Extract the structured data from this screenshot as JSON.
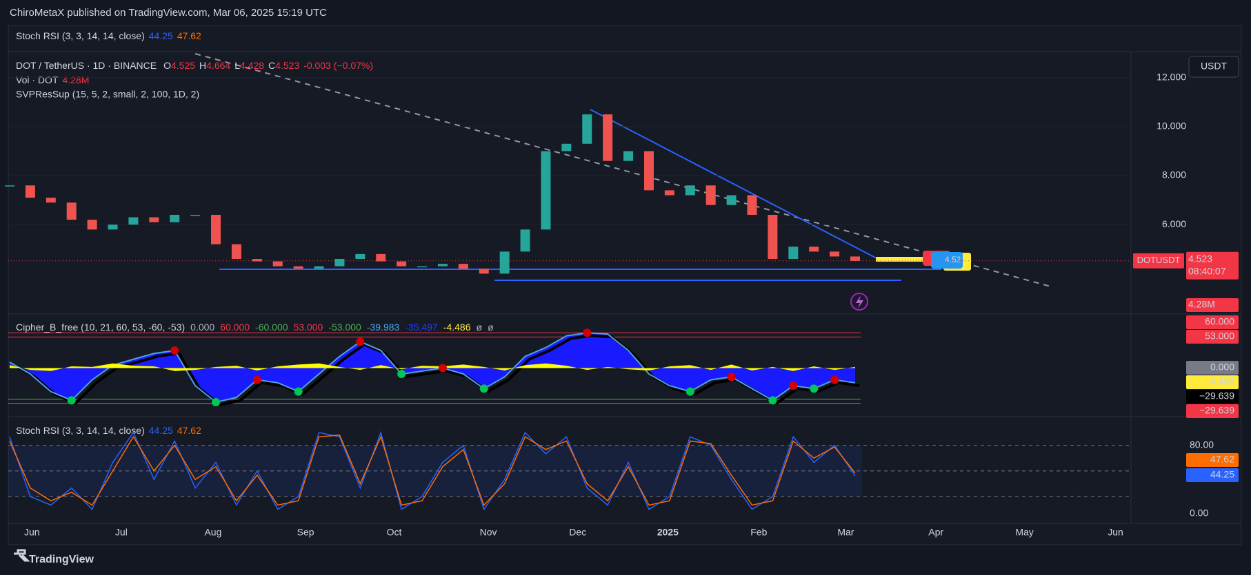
{
  "header": {
    "publisher": "ChiroMetaX published on TradingView.com, Mar 06, 2025 15:19 UTC",
    "pinned_indicator": {
      "name": "Stoch RSI (3, 3, 14, 14, close)",
      "k": "44.25",
      "d": "47.62"
    }
  },
  "legend": {
    "symbol": "DOT / TetherUS · 1D · BINANCE",
    "o_label": "O",
    "open": "4.525",
    "h_label": "H",
    "high": "4.664",
    "l_label": "L",
    "low": "4.428",
    "c_label": "C",
    "close": "4.523",
    "change": "-0.003 (−0.07%)",
    "volume_name": "Vol · DOT",
    "volume": "4.28M",
    "svp": "SVPResSup (15, 5, 2, small, 2, 100, 1D, 2)"
  },
  "price_pane": {
    "currency": "USDT",
    "ylim": [
      2.38,
      13.06
    ],
    "yticks": [
      {
        "value": 12,
        "label": "12.000"
      },
      {
        "value": 10,
        "label": "10.000"
      },
      {
        "value": 8,
        "label": "8.000"
      },
      {
        "value": 6,
        "label": "6.000"
      }
    ],
    "closes": [
      7.6,
      7.1,
      6.9,
      6.2,
      5.8,
      6.0,
      6.3,
      6.1,
      6.4,
      6.4,
      5.2,
      4.6,
      4.5,
      4.3,
      4.2,
      4.3,
      4.6,
      4.8,
      4.5,
      4.3,
      4.3,
      4.4,
      4.2,
      4.0,
      4.9,
      5.8,
      9.0,
      9.3,
      10.5,
      8.6,
      9.0,
      7.4,
      7.2,
      7.6,
      6.8,
      7.2,
      6.4,
      4.6,
      5.1,
      4.9,
      4.7,
      4.52
    ],
    "last_value": 4.523,
    "symbol_tag": "DOTUSDT",
    "last_price": "4.523",
    "countdown": "08:40:07",
    "volume_tag": "4.28M",
    "marker_label": "4.52"
  },
  "cipher_pane": {
    "title": "Cipher_B_free (10, 21, 60, 53, -60, -53)",
    "readouts": [
      {
        "text": "0.000",
        "color": "#b2b5be"
      },
      {
        "text": "60.000",
        "color": "#f23645"
      },
      {
        "text": "-60.000",
        "color": "#4caf50"
      },
      {
        "text": "53.000",
        "color": "#f23645"
      },
      {
        "text": "-53.000",
        "color": "#4caf50"
      },
      {
        "text": "-39.983",
        "color": "#42a5f5"
      },
      {
        "text": "-35.497",
        "color": "#1e3fff"
      },
      {
        "text": "-4.486",
        "color": "#ffeb3b"
      },
      {
        "text": "ø",
        "color": "#b2b5be"
      },
      {
        "text": "ø",
        "color": "#b2b5be"
      }
    ],
    "ylim": [
      -81.5,
      91
    ],
    "levels": [
      60,
      53,
      -53,
      -60
    ],
    "wave": [
      10,
      -10,
      -40,
      -55,
      -20,
      5,
      15,
      25,
      30,
      -30,
      -58,
      -50,
      -20,
      -25,
      -40,
      -10,
      20,
      45,
      30,
      -10,
      -5,
      0,
      -10,
      -35,
      -15,
      20,
      35,
      55,
      60,
      58,
      30,
      -10,
      -30,
      -40,
      -20,
      -15,
      -35,
      -55,
      -30,
      -35,
      -20,
      -25
    ],
    "wave2": [
      5,
      -3,
      -5,
      3,
      2,
      8,
      4,
      3,
      -5,
      -3,
      2,
      4,
      -4,
      3,
      6,
      8,
      2,
      -3,
      5,
      -2,
      4,
      3,
      6,
      2,
      -4,
      5,
      8,
      4,
      -3,
      2,
      -2,
      -4,
      3,
      5,
      -3,
      6,
      -4,
      2,
      -5,
      3,
      -3,
      2
    ],
    "axis_labels": [
      {
        "text": "60.000",
        "bg": "#f23645",
        "color": "#ffffff"
      },
      {
        "text": "53.000",
        "bg": "#f23645",
        "color": "#ffffff"
      },
      {
        "text": "0.000",
        "bg": "#787b86",
        "color": "#ffffff"
      },
      {
        "text": "−4.486",
        "bg": "#ffeb3b",
        "color": "#000000"
      },
      {
        "text": "−29.639",
        "bg": "#000000",
        "color": "#ffffff"
      },
      {
        "text": "−29.639",
        "bg": "#f23645",
        "color": "#ffffff"
      }
    ]
  },
  "stoch_pane": {
    "title": "Stoch RSI (3, 3, 14, 14, close)",
    "k_value": "44.25",
    "d_value": "47.62",
    "ylim": [
      -10.6,
      112.8
    ],
    "yticks": [
      {
        "value": 80,
        "label": "80.00"
      },
      {
        "value": 0,
        "label": "0.00"
      }
    ],
    "bands": [
      80,
      50,
      20
    ],
    "k": [
      90,
      20,
      10,
      30,
      5,
      60,
      95,
      40,
      85,
      30,
      60,
      10,
      50,
      5,
      20,
      95,
      90,
      30,
      95,
      5,
      20,
      60,
      80,
      5,
      40,
      95,
      70,
      90,
      30,
      10,
      60,
      5,
      20,
      90,
      80,
      40,
      5,
      20,
      90,
      60,
      80,
      44.25
    ],
    "d": [
      85,
      30,
      15,
      25,
      10,
      50,
      90,
      50,
      80,
      40,
      55,
      15,
      45,
      10,
      15,
      90,
      92,
      35,
      90,
      10,
      15,
      55,
      75,
      10,
      35,
      90,
      75,
      85,
      35,
      15,
      55,
      10,
      15,
      85,
      82,
      45,
      10,
      15,
      85,
      65,
      78,
      47.62
    ]
  },
  "time_axis": [
    "Jun",
    "Jul",
    "Aug",
    "Sep",
    "Oct",
    "Nov",
    "Dec",
    "2025",
    "Feb",
    "Mar",
    "Apr",
    "May",
    "Jun"
  ],
  "footer": "TradingView"
}
